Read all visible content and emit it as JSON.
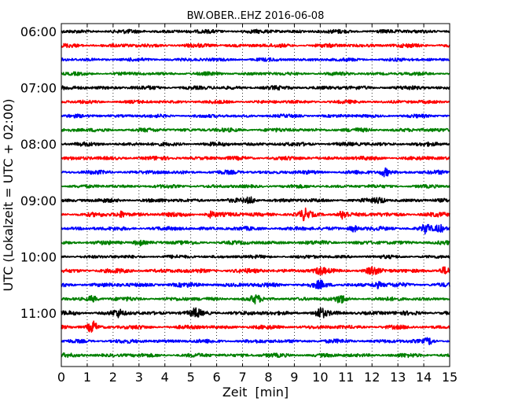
{
  "chart_data": {
    "type": "line",
    "title": "BW.OBER..EHZ 2016-06-08",
    "xlabel": "Zeit  [min]",
    "ylabel": "UTC (Lokalzeit = UTC + 02:00)",
    "xlim": [
      0,
      15
    ],
    "x_ticks": [
      "0",
      "1",
      "2",
      "3",
      "4",
      "5",
      "6",
      "7",
      "8",
      "9",
      "10",
      "11",
      "12",
      "13",
      "14",
      "15"
    ],
    "y_ticks": [
      "06:00",
      "07:00",
      "08:00",
      "09:00",
      "10:00",
      "11:00"
    ],
    "grid": "x-dotted",
    "colors": [
      "#000000",
      "#ff0000",
      "#0000ff",
      "#008000"
    ],
    "trace_minutes_per_row": 15,
    "traces": [
      {
        "start": "06:00",
        "color": "#000000",
        "amplitude": 0.8
      },
      {
        "start": "06:15",
        "color": "#ff0000",
        "amplitude": 0.8
      },
      {
        "start": "06:30",
        "color": "#0000ff",
        "amplitude": 0.7
      },
      {
        "start": "06:45",
        "color": "#008000",
        "amplitude": 0.7
      },
      {
        "start": "07:00",
        "color": "#000000",
        "amplitude": 0.8
      },
      {
        "start": "07:15",
        "color": "#ff0000",
        "amplitude": 0.7
      },
      {
        "start": "07:30",
        "color": "#0000ff",
        "amplitude": 0.7
      },
      {
        "start": "07:45",
        "color": "#008000",
        "amplitude": 0.8
      },
      {
        "start": "08:00",
        "color": "#000000",
        "amplitude": 0.8
      },
      {
        "start": "08:15",
        "color": "#ff0000",
        "amplitude": 0.8
      },
      {
        "start": "08:30",
        "color": "#0000ff",
        "amplitude": 0.8,
        "bursts": [
          [
            12.5,
            2.0
          ]
        ]
      },
      {
        "start": "08:45",
        "color": "#008000",
        "amplitude": 0.7
      },
      {
        "start": "09:00",
        "color": "#000000",
        "amplitude": 0.8,
        "bursts": [
          [
            7.3,
            1.6
          ],
          [
            12.3,
            1.4
          ]
        ]
      },
      {
        "start": "09:15",
        "color": "#ff0000",
        "amplitude": 0.9,
        "bursts": [
          [
            9.4,
            2.4
          ],
          [
            10.9,
            2.2
          ],
          [
            5.8,
            1.5
          ],
          [
            2.3,
            1.4
          ]
        ]
      },
      {
        "start": "09:30",
        "color": "#0000ff",
        "amplitude": 0.8,
        "bursts": [
          [
            14.1,
            2.5
          ],
          [
            11.3,
            1.6
          ],
          [
            14.6,
            1.8
          ]
        ]
      },
      {
        "start": "09:45",
        "color": "#008000",
        "amplitude": 0.8,
        "bursts": [
          [
            3.0,
            1.3
          ]
        ]
      },
      {
        "start": "10:00",
        "color": "#000000",
        "amplitude": 0.7
      },
      {
        "start": "10:15",
        "color": "#ff0000",
        "amplitude": 0.9,
        "bursts": [
          [
            12.0,
            2.0
          ],
          [
            10.0,
            1.6
          ],
          [
            14.8,
            1.5
          ]
        ]
      },
      {
        "start": "10:30",
        "color": "#0000ff",
        "amplitude": 0.9,
        "bursts": [
          [
            10.0,
            1.6
          ],
          [
            12.2,
            1.5
          ]
        ]
      },
      {
        "start": "10:45",
        "color": "#008000",
        "amplitude": 0.8,
        "bursts": [
          [
            7.5,
            1.7
          ],
          [
            10.8,
            1.8
          ],
          [
            1.2,
            1.4
          ]
        ]
      },
      {
        "start": "11:00",
        "color": "#000000",
        "amplitude": 0.9,
        "bursts": [
          [
            10.0,
            2.3
          ],
          [
            5.2,
            1.8
          ],
          [
            2.2,
            1.5
          ]
        ]
      },
      {
        "start": "11:15",
        "color": "#ff0000",
        "amplitude": 0.8,
        "bursts": [
          [
            1.2,
            3.0
          ]
        ]
      },
      {
        "start": "11:30",
        "color": "#0000ff",
        "amplitude": 0.8,
        "bursts": [
          [
            14.2,
            1.6
          ]
        ]
      },
      {
        "start": "11:45",
        "color": "#008000",
        "amplitude": 0.8
      }
    ]
  }
}
